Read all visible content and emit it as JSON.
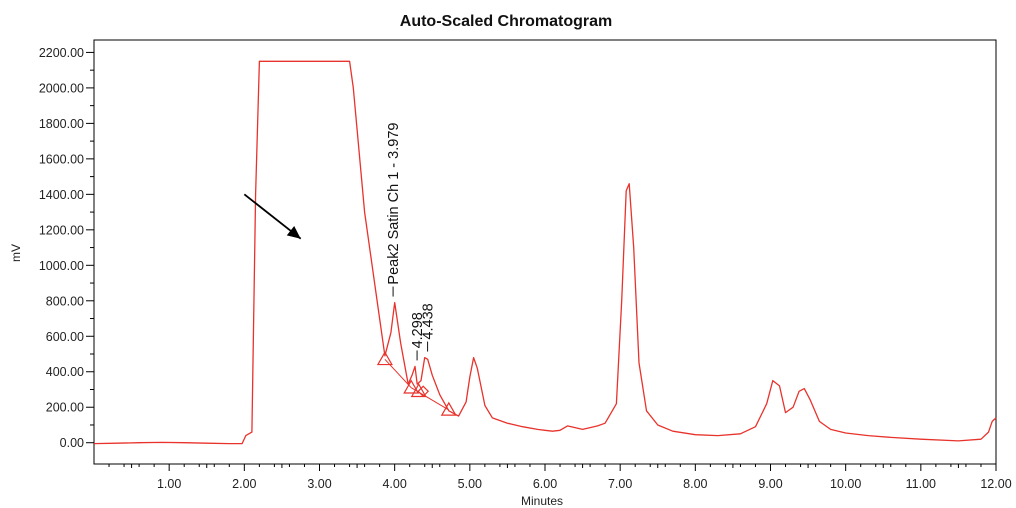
{
  "chart_data": {
    "type": "line",
    "title": "Auto-Scaled Chromatogram",
    "xlabel": "Minutes",
    "ylabel": "mV",
    "xlim": [
      0,
      12
    ],
    "ylim": [
      -120,
      2270
    ],
    "grid": false,
    "x_ticks": [
      1,
      2,
      3,
      4,
      5,
      6,
      7,
      8,
      9,
      10,
      11,
      12
    ],
    "x_tick_labels": [
      "1.00",
      "2.00",
      "3.00",
      "4.00",
      "5.00",
      "6.00",
      "7.00",
      "8.00",
      "9.00",
      "10.00",
      "11.00",
      "12.00"
    ],
    "y_ticks": [
      0,
      200,
      400,
      600,
      800,
      1000,
      1200,
      1400,
      1600,
      1800,
      2000,
      2200
    ],
    "y_tick_labels": [
      "0.00",
      "200.00",
      "400.00",
      "600.00",
      "800.00",
      "1000.00",
      "1200.00",
      "1400.00",
      "1600.00",
      "1800.00",
      "2000.00",
      "2200.00"
    ],
    "series": [
      {
        "color": "#e8332c",
        "x": [
          0.0,
          0.3,
          0.6,
          0.9,
          1.2,
          1.5,
          1.8,
          1.97,
          2.02,
          2.1,
          2.15,
          2.2,
          3.4,
          3.45,
          3.6,
          3.8,
          3.87,
          3.95,
          4.0,
          4.08,
          4.18,
          4.23,
          4.27,
          4.3,
          4.35,
          4.4,
          4.44,
          4.5,
          4.6,
          4.72,
          4.85,
          4.95,
          5.0,
          5.05,
          5.1,
          5.2,
          5.3,
          5.5,
          5.7,
          5.9,
          6.0,
          6.1,
          6.2,
          6.3,
          6.5,
          6.7,
          6.8,
          6.95,
          7.02,
          7.08,
          7.12,
          7.18,
          7.25,
          7.35,
          7.5,
          7.7,
          8.0,
          8.3,
          8.6,
          8.8,
          8.95,
          9.03,
          9.12,
          9.2,
          9.3,
          9.38,
          9.45,
          9.53,
          9.65,
          9.8,
          10.0,
          10.3,
          10.6,
          11.0,
          11.5,
          11.8,
          11.9,
          11.95,
          12.0
        ],
        "y": [
          -5,
          -3,
          0,
          2,
          0,
          -3,
          -5,
          -5,
          40,
          60,
          1400,
          2150,
          2150,
          2000,
          1300,
          700,
          490,
          620,
          790,
          560,
          330,
          380,
          430,
          330,
          350,
          480,
          470,
          380,
          270,
          180,
          150,
          230,
          370,
          480,
          420,
          210,
          140,
          110,
          90,
          75,
          70,
          65,
          70,
          95,
          75,
          95,
          110,
          220,
          800,
          1420,
          1460,
          1100,
          450,
          180,
          100,
          65,
          45,
          40,
          50,
          90,
          220,
          350,
          320,
          170,
          200,
          290,
          305,
          240,
          120,
          75,
          55,
          40,
          30,
          20,
          10,
          20,
          60,
          120,
          140
        ]
      }
    ],
    "baseline_markers": [
      {
        "x": 3.87,
        "y": 470
      },
      {
        "x": 4.22,
        "y": 310
      },
      {
        "x": 4.32,
        "y": 290
      },
      {
        "x": 4.72,
        "y": 185
      }
    ],
    "diamond_markers": [
      {
        "x": 4.38,
        "y": 290
      }
    ],
    "baselines": [
      {
        "x": [
          3.87,
          4.22
        ],
        "y": [
          470,
          310
        ]
      },
      {
        "x": [
          4.22,
          4.72
        ],
        "y": [
          310,
          185
        ]
      }
    ],
    "annotations": [
      {
        "text": "Peak2 Satin Ch 1 - 3.979",
        "x": 3.979,
        "y": 790
      },
      {
        "text": "4.298",
        "x": 4.298,
        "y": 430
      },
      {
        "text": "4.438",
        "x": 4.438,
        "y": 480
      }
    ],
    "arrow": {
      "from": [
        2.0,
        1400
      ],
      "to": [
        2.75,
        1150
      ]
    }
  }
}
